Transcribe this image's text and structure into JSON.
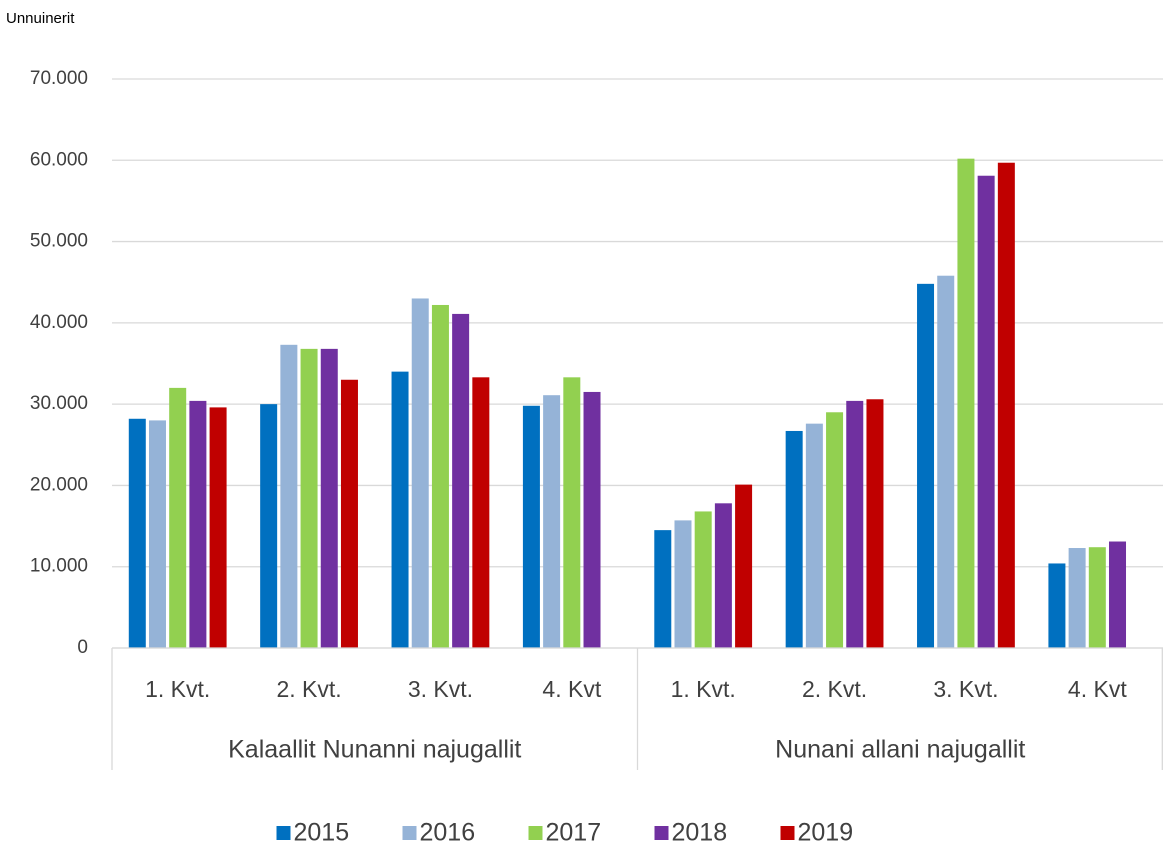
{
  "chart_data": {
    "type": "bar",
    "y_label": "Unnuinerit",
    "categories": [
      "1. Kvt.",
      "2. Kvt.",
      "3. Kvt.",
      "4. Kvt",
      "1. Kvt.",
      "2. Kvt.",
      "3. Kvt.",
      "4. Kvt"
    ],
    "groups": [
      "Kalaallit Nunanni najugallit",
      "Nunani allani najugallit"
    ],
    "series": [
      {
        "name": "2015",
        "color": "#0070c0",
        "values": [
          28200,
          30000,
          34000,
          29800,
          14500,
          26700,
          44800,
          10400
        ]
      },
      {
        "name": "2016",
        "color": "#95b3d7",
        "values": [
          28000,
          37300,
          43000,
          31100,
          15700,
          27600,
          45800,
          12300
        ]
      },
      {
        "name": "2017",
        "color": "#92d050",
        "values": [
          32000,
          36800,
          42200,
          33300,
          16800,
          29000,
          60200,
          12400
        ]
      },
      {
        "name": "2018",
        "color": "#7030a0",
        "values": [
          30400,
          36800,
          41100,
          31500,
          17800,
          30400,
          58100,
          13100
        ]
      },
      {
        "name": "2019",
        "color": "#c00000",
        "values": [
          29600,
          33000,
          33300,
          null,
          20100,
          30600,
          59700,
          null
        ]
      }
    ],
    "ylim": [
      0,
      70000
    ],
    "yticks": [
      0,
      {
        "value": 10000,
        "label": "10.000"
      },
      {
        "value": 20000,
        "label": "20.000"
      },
      {
        "value": 30000,
        "label": "30.000"
      },
      {
        "value": 40000,
        "label": "40.000"
      },
      {
        "value": 50000,
        "label": "50.000"
      },
      {
        "value": 60000,
        "label": "60.000"
      },
      {
        "value": 70000,
        "label": "70.000"
      }
    ],
    "grid": true,
    "legend": "bottom"
  }
}
